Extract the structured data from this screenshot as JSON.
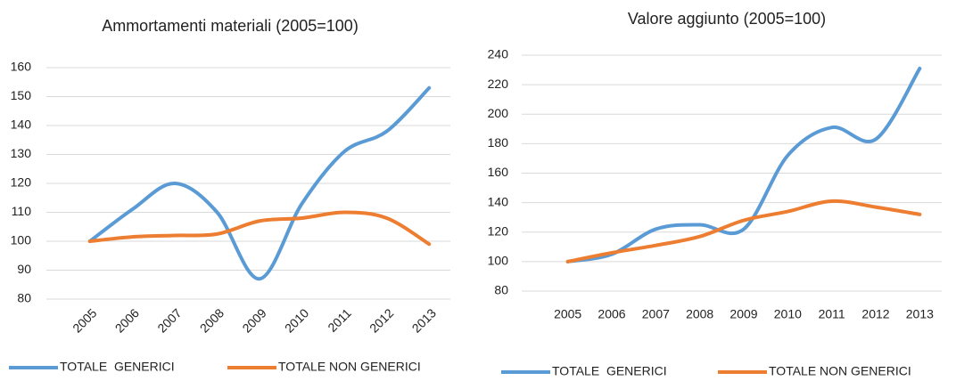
{
  "chart_data": [
    {
      "type": "line",
      "title": "Ammortamenti materiali (2005=100)",
      "categories": [
        "2005",
        "2006",
        "2007",
        "2008",
        "2009",
        "2010",
        "2011",
        "2012",
        "2013"
      ],
      "series": [
        {
          "name": "TOTALE  GENERICI",
          "color": "#5b9bd5",
          "values": [
            100,
            111,
            120,
            110,
            87,
            113,
            131,
            138,
            153
          ]
        },
        {
          "name": "TOTALE NON GENERICI",
          "color": "#ed7d31",
          "values": [
            100,
            101.5,
            102,
            102.5,
            107,
            108,
            110,
            108,
            99
          ]
        }
      ],
      "ylim": [
        80,
        160
      ],
      "yticks": [
        80,
        90,
        100,
        110,
        120,
        130,
        140,
        150,
        160
      ],
      "grid": true,
      "legend": "bottom"
    },
    {
      "type": "line",
      "title": "Valore aggiunto (2005=100)",
      "categories": [
        "2005",
        "2006",
        "2007",
        "2008",
        "2009",
        "2010",
        "2011",
        "2012",
        "2013"
      ],
      "series": [
        {
          "name": "TOTALE  GENERICI",
          "color": "#5b9bd5",
          "values": [
            100,
            105,
            122,
            125,
            122,
            172,
            191,
            183,
            231
          ]
        },
        {
          "name": "TOTALE NON GENERICI",
          "color": "#ed7d31",
          "values": [
            100,
            106,
            111,
            117,
            128,
            134,
            141,
            137,
            132
          ]
        }
      ],
      "ylim": [
        80,
        240
      ],
      "yticks": [
        80,
        100,
        120,
        140,
        160,
        180,
        200,
        220,
        240
      ],
      "grid": true,
      "legend": "bottom"
    }
  ]
}
